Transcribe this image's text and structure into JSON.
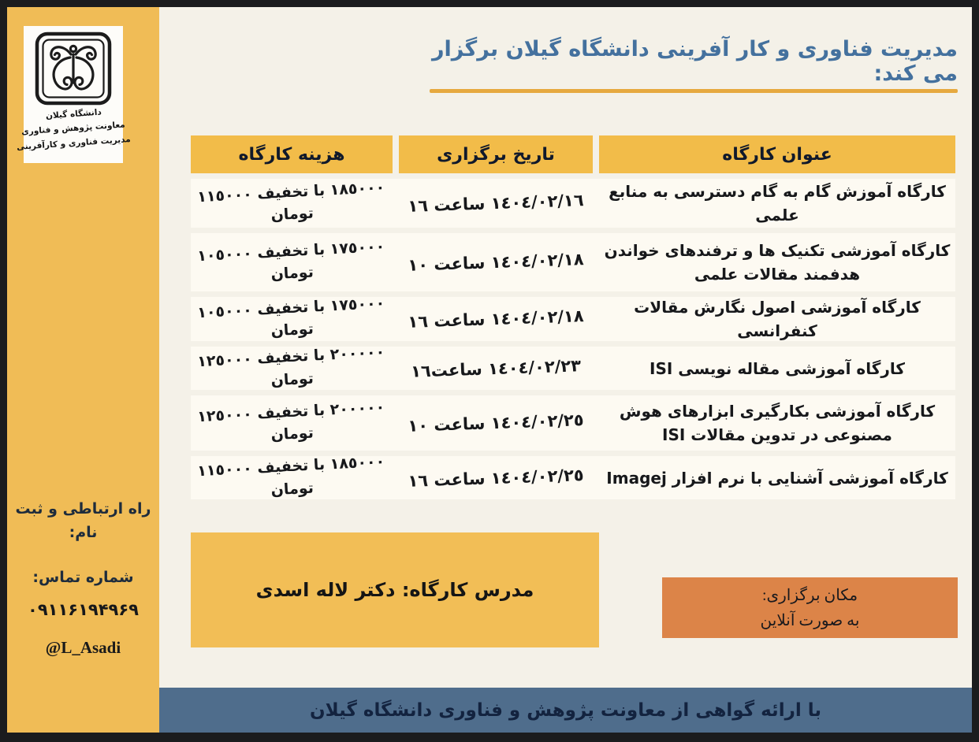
{
  "page": {
    "title": "مدیریت فناوری و کار آفرینی دانشگاه گیلان برگزار می کند:",
    "footer": "با ارائه گواهی از معاونت پژوهش و فناوری دانشگاه گیلان"
  },
  "sidebar": {
    "logo_line1": "دانشگاه گیلان",
    "logo_line2": "معاونت پژوهش و فناوری",
    "logo_line3": "مدیریت فناوری و کارآفرینی",
    "contact_heading": "راه ارتباطی و ثبت نام:",
    "phone_label": "شماره تماس:",
    "phone_number": "۰۹۱۱۶۱۹۴۹۶۹",
    "telegram_handle": "@L_Asadi"
  },
  "table": {
    "headers": {
      "title": "عنوان کارگاه",
      "date": "تاریخ برگزاری",
      "cost": "هزینه کارگاه"
    },
    "rows": [
      {
        "title": "کارگاه آموزش گام به گام دسترسی به منابع علمی",
        "date": "١٤٠٤/٠٢/١٦ ساعت ١٦",
        "cost": "١٨٥٠٠٠ با تخفیف ١١٥٠٠٠ تومان"
      },
      {
        "title": "کارگاه آموزشی تکنیک ها و ترفندهای خواندن هدفمند مقالات علمی",
        "date": "١٤٠٤/٠٢/١٨ ساعت ١٠",
        "cost": "١٧٥٠٠٠ با تخفیف ١٠٥٠٠٠ تومان"
      },
      {
        "title": "کارگاه آموزشی اصول نگارش مقالات کنفرانسی",
        "date": "١٤٠٤/٠٢/١٨ ساعت ١٦",
        "cost": "١٧٥٠٠٠ با تخفیف ١٠٥٠٠٠ تومان"
      },
      {
        "title": "کارگاه آموزشی مقاله نویسی  ISI",
        "date": "١٤٠٤/٠٢/٢٣ ساعت١٦",
        "cost": "٢٠٠٠٠٠ با تخفیف ١٢٥٠٠٠ تومان"
      },
      {
        "title": "کارگاه آموزشی بکارگیری ابزارهای هوش مصنوعی در تدوین مقالات ISI",
        "date": "١٤٠٤/٠٢/٢٥ ساعت ١٠",
        "cost": "٢٠٠٠٠٠ با تخفیف ١٢٥٠٠٠ تومان"
      },
      {
        "title": "کارگاه آموزشی آشنایی با نرم افزار Imagej",
        "date": "١٤٠٤/٠٢/٢٥ ساعت ١٦",
        "cost": "١٨٥٠٠٠ با تخفیف ١١٥٠٠٠ تومان"
      }
    ]
  },
  "instructor_box": {
    "text": "مدرس کارگاه: دکتر لاله اسدی"
  },
  "location_box": {
    "line1": "مکان برگزاری:",
    "line2": "به صورت آنلاین"
  },
  "colors": {
    "sidebar_orange": "#f0bc56",
    "header_orange": "#f2bc49",
    "instructor_orange": "#f2be56",
    "location_orange": "#dc8448",
    "footer_slate_blue": "#4f6d8c",
    "title_blue": "#44719e",
    "underline_gold": "#e6a93f",
    "page_cream": "#f4f1e8",
    "row_white": "#fdfaf2",
    "frame_black": "#1b1c1e"
  }
}
